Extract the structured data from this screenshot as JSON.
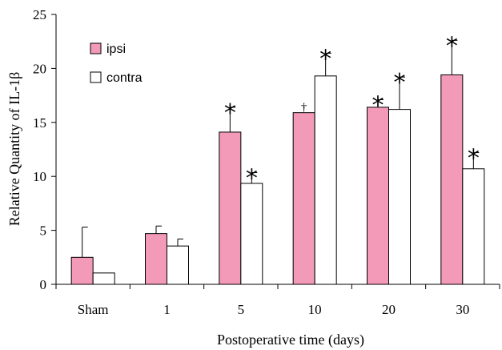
{
  "colors": {
    "ipsi": "#f49ab9",
    "contra": "#ffffff",
    "stroke": "#000000"
  },
  "chart_data": {
    "type": "bar",
    "ylabel": "Relative Quantity of IL-1β",
    "xlabel": "Postoperative time (days)",
    "ylim": [
      0,
      25
    ],
    "yticks": [
      "0",
      "5",
      "10",
      "15",
      "20",
      "25"
    ],
    "categories": [
      "Sham",
      "1",
      "5",
      "10",
      "20",
      "30"
    ],
    "legend_position": "top-left",
    "series": [
      {
        "name": "ipsi",
        "values": [
          2.5,
          4.7,
          14.1,
          15.9,
          16.4,
          19.4
        ],
        "error": [
          2.8,
          0.7,
          2.3,
          0.0,
          0.7,
          3.2
        ],
        "marks": [
          "",
          "",
          "*",
          "†",
          "*",
          "*"
        ]
      },
      {
        "name": "contra",
        "values": [
          1.05,
          3.55,
          9.35,
          19.3,
          16.2,
          10.7
        ],
        "error": [
          0.0,
          0.65,
          1.0,
          2.1,
          3.0,
          1.5
        ],
        "marks": [
          "",
          "",
          "*",
          "*",
          "*",
          "*"
        ]
      }
    ]
  }
}
